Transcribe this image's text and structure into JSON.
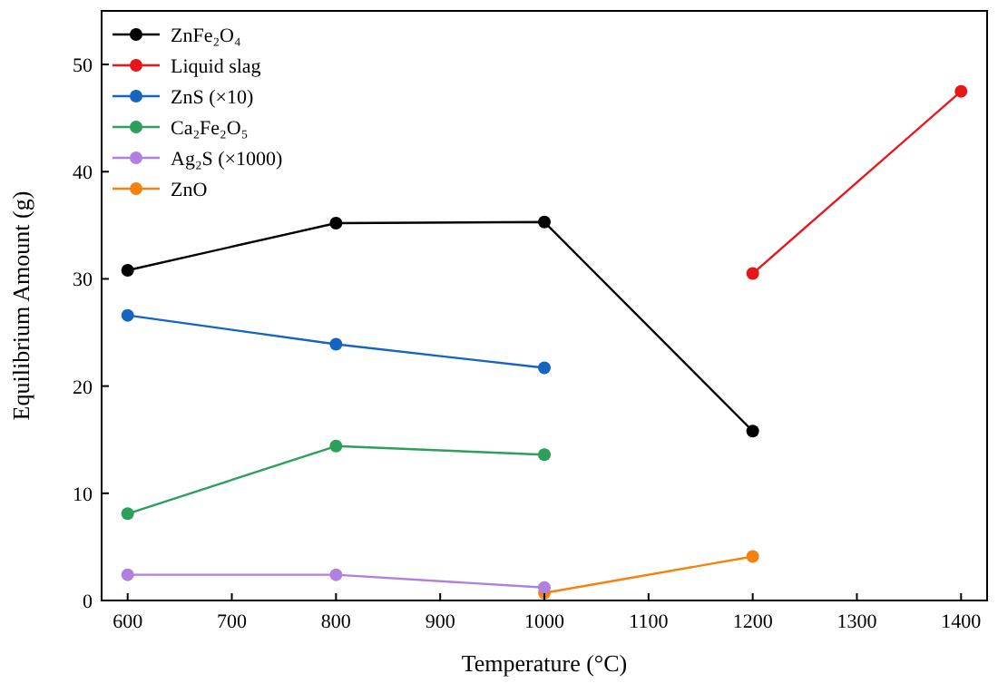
{
  "chart_data": {
    "type": "line",
    "xlabel": "Temperature (°C)",
    "ylabel": "Equilibrium Amount (g)",
    "xlim": [
      575,
      1425
    ],
    "ylim": [
      0,
      55
    ],
    "xticks": [
      600,
      700,
      800,
      900,
      1000,
      1100,
      1200,
      1300,
      1400
    ],
    "yticks": [
      0,
      10,
      20,
      30,
      40,
      50
    ],
    "grid": false,
    "legend": "top left",
    "marker": "circle",
    "line_style": "solid",
    "series": [
      {
        "name": "ZnFe₂O₄",
        "color": "#000000",
        "x": [
          600,
          800,
          1000,
          1200
        ],
        "values": [
          30.8,
          35.2,
          35.3,
          15.8
        ]
      },
      {
        "name": "Liquid slag",
        "color": "#e8151b",
        "x": [
          1200,
          1400
        ],
        "values": [
          30.5,
          47.5
        ]
      },
      {
        "name": "ZnS  (×10)",
        "color": "#1565c0",
        "x": [
          600,
          800,
          1000
        ],
        "values": [
          26.6,
          23.9,
          21.7
        ]
      },
      {
        "name": "Ca₂Fe₂O₅",
        "color": "#2ca05a",
        "x": [
          600,
          800,
          1000
        ],
        "values": [
          8.1,
          14.4,
          13.6
        ]
      },
      {
        "name": "Ag₂S (×1000)",
        "color": "#b07fe0",
        "x": [
          600,
          800,
          1000
        ],
        "values": [
          2.4,
          2.4,
          1.2
        ]
      },
      {
        "name": "ZnO",
        "color": "#f5820e",
        "x": [
          1000,
          1200
        ],
        "values": [
          0.7,
          4.1
        ]
      }
    ]
  }
}
